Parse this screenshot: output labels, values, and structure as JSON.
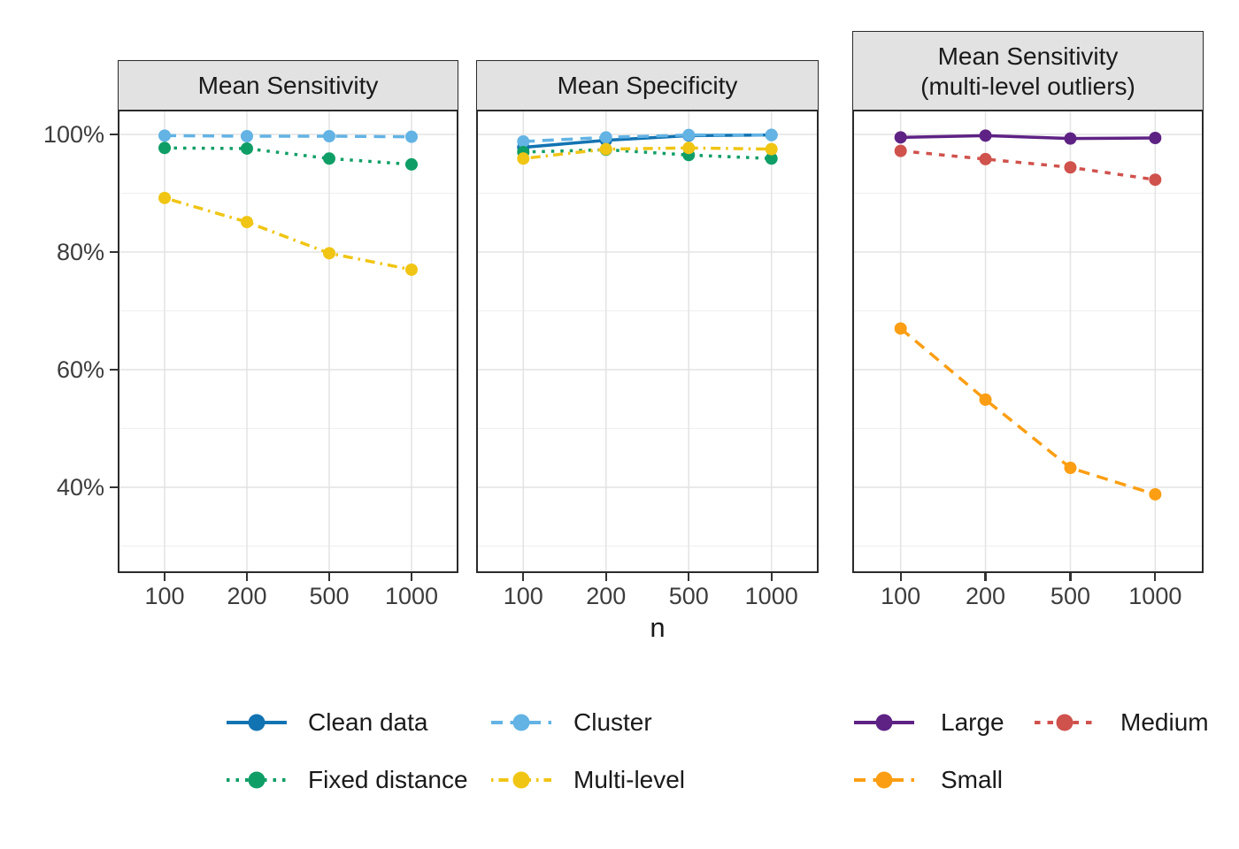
{
  "axis": {
    "x_label": "n",
    "x_tick_labels": [
      "100",
      "200",
      "500",
      "1000"
    ],
    "y_tick_labels": [
      "100%",
      "80%",
      "60%",
      "40%"
    ],
    "y_tick_values": [
      100,
      80,
      60,
      40
    ]
  },
  "palette": {
    "clean_data": {
      "color": "#1273B2",
      "dash": "solid"
    },
    "cluster": {
      "color": "#63B3E4",
      "dash": "longdash"
    },
    "fixed_distance": {
      "color": "#0F9E66",
      "dash": "dotted"
    },
    "multi_level": {
      "color": "#F0C514",
      "dash": "dashdot"
    },
    "large": {
      "color": "#5E2284",
      "dash": "solid"
    },
    "medium": {
      "color": "#D0524D",
      "dash": "shortdash"
    },
    "small": {
      "color": "#FB9E13",
      "dash": "longdash"
    }
  },
  "chart_data": {
    "type": "line",
    "x_categories": [
      100,
      200,
      500,
      1000
    ],
    "xlabel": "n",
    "ylim": [
      25,
      104
    ],
    "grid": true,
    "legend_position": "bottom",
    "facets": [
      {
        "title_lines": [
          "Mean Sensitivity"
        ],
        "series": [
          {
            "id": "cluster",
            "name": "Cluster",
            "values": [
              99.8,
              99.7,
              99.7,
              99.6
            ]
          },
          {
            "id": "fixed_distance",
            "name": "Fixed distance",
            "values": [
              97.7,
              97.6,
              95.9,
              94.9
            ]
          },
          {
            "id": "multi_level",
            "name": "Multi-level",
            "values": [
              89.2,
              85.1,
              79.8,
              77.0
            ]
          }
        ]
      },
      {
        "title_lines": [
          "Mean Specificity"
        ],
        "series": [
          {
            "id": "clean_data",
            "name": "Clean data",
            "values": [
              97.8,
              99.0,
              99.8,
              99.9
            ]
          },
          {
            "id": "cluster",
            "name": "Cluster",
            "values": [
              98.8,
              99.5,
              99.9,
              99.9
            ]
          },
          {
            "id": "fixed_distance",
            "name": "Fixed distance",
            "values": [
              97.0,
              97.4,
              96.5,
              95.9
            ]
          },
          {
            "id": "multi_level",
            "name": "Multi-level",
            "values": [
              95.9,
              97.5,
              97.7,
              97.5
            ]
          }
        ]
      },
      {
        "title_lines": [
          "Mean Sensitivity",
          "(multi-level outliers)"
        ],
        "series": [
          {
            "id": "large",
            "name": "Large",
            "values": [
              99.5,
              99.8,
              99.3,
              99.4
            ]
          },
          {
            "id": "medium",
            "name": "Medium",
            "values": [
              97.2,
              95.8,
              94.4,
              92.3
            ]
          },
          {
            "id": "small",
            "name": "Small",
            "values": [
              67.0,
              54.9,
              43.3,
              38.8
            ]
          }
        ]
      }
    ]
  },
  "legend": {
    "groups": [
      {
        "items": [
          {
            "label": "Clean data",
            "style": "clean_data"
          },
          {
            "label": "Cluster",
            "style": "cluster"
          },
          {
            "label": "Fixed distance",
            "style": "fixed_distance"
          },
          {
            "label": "Multi-level",
            "style": "multi_level"
          }
        ]
      },
      {
        "items": [
          {
            "label": "Large",
            "style": "large"
          },
          {
            "label": "Medium",
            "style": "medium"
          },
          {
            "label": "Small",
            "style": "small"
          }
        ]
      }
    ]
  },
  "colors": {
    "strip_bg": "#E2E2E2",
    "panel_border": "#2b2b2b",
    "grid_major": "#E3E3E3",
    "grid_minor": "#EFEFEF",
    "tick_mark": "#333333",
    "tick_text": "#3d3d3d",
    "strip_text": "#1a1a1a",
    "legend_text": "#1a1a1a"
  }
}
